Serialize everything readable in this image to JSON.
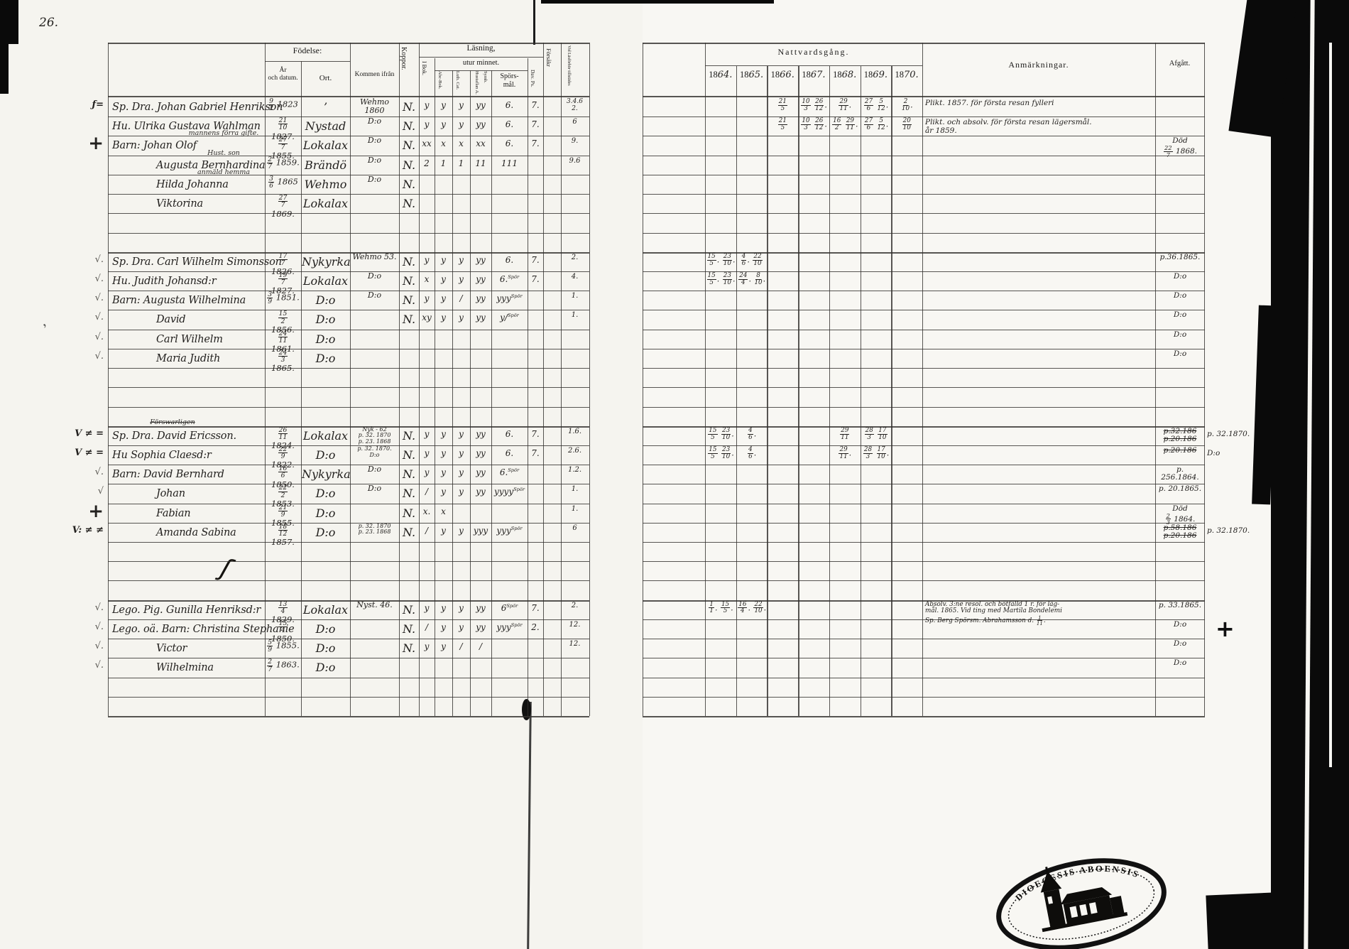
{
  "colors": {
    "ink": "#23211f",
    "paper": "#f7f6f2",
    "line": "#33312e",
    "scan_black": "#0a0a0a"
  },
  "page_number": "26.",
  "left_header": {
    "fodelse": "Födelse:",
    "ar_datum": "År\noch datum.",
    "ort": "Ort.",
    "kommen": "Kommen ifrån",
    "koppor": "Koppor.",
    "lasning": "Läsning,",
    "utur": "utur minnet.",
    "ibok": "I Bok.",
    "abc": "Abc-Bok.",
    "luth": "Luth. Cat.",
    "hust": "Hustaflan A. Symb.",
    "spors": "Spörs-\nmål.",
    "davps": "Dav. Ps.",
    "forsakr": "Försåkr",
    "tillst": "Vid Läsförhör tillstädes"
  },
  "right_header": {
    "nattvard": "Nattvardsgång.",
    "years": [
      "1864.",
      "1865.",
      "1866.",
      "1867.",
      "1868.",
      "1869.",
      "1870."
    ],
    "anm": "Anmärkningar.",
    "afgatt": "Afgått."
  },
  "stamp": {
    "top": "DIOECESIS ABOENSIS",
    "bottom": "· · · · · · ·"
  },
  "rows": [
    {
      "i": 0,
      "margin": "ƒ=",
      "name": "Sp. Dra. Johan Gabriel Henrikson",
      "born": "9/2 1823",
      "ort": "’",
      "kommen": "Wehmo 1860",
      "koppor": "N.",
      "marks": [
        "y",
        "y",
        "y",
        "yy",
        "6.",
        "7.",
        ""
      ],
      "tillst": "3.4.6\n2.",
      "comm": {
        "2": "21/5",
        "3": "10/3 26/12.",
        "4": "29/11.",
        "5": "27/6 5/12.",
        "6": "2/10."
      },
      "anm": "Plikt. 1857. för första resan fylleri"
    },
    {
      "i": 1,
      "name": "Hu. Ulrika Gustava Wahlman",
      "born": "21/10 1827.",
      "ort": "Nystad",
      "kommen": "D:o",
      "koppor": "N.",
      "marks": [
        "y",
        "y",
        "y",
        "yy",
        "6.",
        "7.",
        ""
      ],
      "tillst": "6",
      "comm": {
        "2": "21/5",
        "3": "10/3 26/12.",
        "4": "16/2 29/11.",
        "5": "27/6 5/12.",
        "6": "20/10"
      },
      "anm": "Plikt. och absolv. för första resan lägersmål.\når 1859."
    },
    {
      "i": 2,
      "margin": "+",
      "note": "mannens förra gifte.",
      "name": "Barn: Johan Olof",
      "born": "27/7 1855.",
      "ort": "Lokalax",
      "kommen": "D:o",
      "koppor": "N.",
      "marks": [
        "xx",
        "x",
        "x",
        "xx",
        "6.",
        "7.",
        ""
      ],
      "tillst": "9.",
      "afgatt": "Död\n22/7 1868."
    },
    {
      "i": 3,
      "note": "Hust. son",
      "name": "Augusta Bernhardina",
      "child": true,
      "born": "2/7 1859.",
      "ort": "Brändö",
      "kommen": "D:o",
      "koppor": "N.",
      "marks": [
        "2",
        "1",
        "1",
        "11",
        "111",
        "",
        ""
      ],
      "tillst": "9.6"
    },
    {
      "i": 4,
      "note": "anmäld hemma",
      "name": "Hilda Johanna",
      "child": true,
      "born": "3/6 1865",
      "ort": "Wehmo",
      "kommen": "D:o",
      "koppor": "N."
    },
    {
      "i": 5,
      "name": "Viktorina",
      "child": true,
      "born": "27/7 1869.",
      "ort": "Lokalax",
      "koppor": "N."
    },
    {
      "i": 8,
      "margin": "√.",
      "name": "Sp. Dra. Carl Wilhelm Simonsson",
      "born": "17/7 1826.",
      "ort": "Nykyrka",
      "kommen": "Wehmo 53.",
      "koppor": "N.",
      "marks": [
        "y",
        "y",
        "y",
        "yy",
        "6.",
        "7.",
        ""
      ],
      "tillst": "2.",
      "comm": {
        "0": "15/5. 23/10.",
        "1": "4/6. 22/10"
      },
      "afgatt": "p.36.1865."
    },
    {
      "i": 9,
      "margin": "√.",
      "name": "Hu. Judith Johansd:r",
      "born": "19/7 1827.",
      "ort": "Lokalax",
      "kommen": "D:o",
      "koppor": "N.",
      "marks": [
        "x",
        "y",
        "y",
        "yy",
        "6.^Spör",
        "7.",
        ""
      ],
      "tillst": "4.",
      "comm": {
        "0": "15/5. 23/10.",
        "1": "24/4. 8/10."
      },
      "afgatt": "D:o"
    },
    {
      "i": 10,
      "margin": "√.",
      "name": "Barn: Augusta Wilhelmina",
      "born": "3/9 1851.",
      "ort": "D:o",
      "kommen": "D:o",
      "koppor": "N.",
      "marks": [
        "y",
        "y",
        "/",
        "yy",
        "yyy^Spör",
        "",
        ""
      ],
      "tillst": "1.",
      "afgatt": "D:o"
    },
    {
      "i": 11,
      "margin": "√.",
      "name": "David",
      "child": true,
      "born": "15/2 1856.",
      "ort": "D:o",
      "koppor": "N.",
      "marks": [
        "xy",
        "y",
        "y",
        "yy",
        "y/^Spör",
        "",
        ""
      ],
      "tillst": "1.",
      "afgatt": "D:o"
    },
    {
      "i": 12,
      "margin": "√.",
      "name": "Carl Wilhelm",
      "child": true,
      "born": "24/11 1861.",
      "ort": "D:o",
      "afgatt": "D:o"
    },
    {
      "i": 13,
      "margin": "√.",
      "name": "Maria Judith",
      "child": true,
      "born": "24/3 1865.",
      "ort": "D:o",
      "afgatt": "D:o"
    },
    {
      "i": 17,
      "margin": "V ≠ =",
      "note_struck": "Förswarligen",
      "name": "Sp. Dra. David Ericsson.",
      "born": "26/11 1824.",
      "ort": "Lokalax",
      "kommen": "Nyk - 62\np. 32. 1870\np. 23. 1868",
      "koppor": "N.",
      "marks": [
        "y",
        "y",
        "y",
        "yy",
        "6.",
        "7.",
        ""
      ],
      "tillst": "1.6.",
      "comm": {
        "0": "15/5 23/10.",
        "1": "4/6.",
        "4": "29/11",
        "5": "28/3 17/10"
      },
      "afgatt": "~p.32.186~\n~p.20.186~",
      "outside": "p. 32.1870."
    },
    {
      "i": 18,
      "margin": "V ≠ =",
      "name": "Hu Sophia Claesd:r",
      "born": "22/9 1822.",
      "ort": "D:o",
      "kommen": "p. 32. 1870.\nD:o",
      "koppor": "N.",
      "marks": [
        "y",
        "y",
        "y",
        "yy",
        "6.",
        "7.",
        ""
      ],
      "tillst": "2.6.",
      "comm": {
        "0": "15/5 23/10.",
        "1": "4/6.",
        "4": "29/11.",
        "5": "28/3 17/10."
      },
      "afgatt": "~p.20.186~",
      "outside": "D:o"
    },
    {
      "i": 19,
      "margin": "√.",
      "name": "Barn: David Bernhard",
      "born": "16/6 1850.",
      "ort": "Nykyrka",
      "kommen": "D:o",
      "koppor": "N.",
      "marks": [
        "y",
        "y",
        "y",
        "yy",
        "6.^Spör",
        "",
        ""
      ],
      "tillst": "1.2.",
      "afgatt": "p. 256.1864."
    },
    {
      "i": 20,
      "margin": "√",
      "name": "Johan",
      "child": true,
      "born": "22/2 1853.",
      "ort": "D:o",
      "kommen": "D:o",
      "koppor": "N.",
      "marks": [
        "/",
        "y",
        "y",
        "yy",
        "yyyy^Spör",
        "",
        ""
      ],
      "tillst": "1.",
      "afgatt": "p. 20.1865."
    },
    {
      "i": 21,
      "margin": "+",
      "name": "Fabian",
      "child": true,
      "born": "21/9 1855.",
      "ort": "D:o",
      "koppor": "N.",
      "marks": [
        "x.",
        "x",
        "",
        "",
        "",
        "",
        ""
      ],
      "tillst": "1.",
      "afgatt": "Död\n2/3 1864."
    },
    {
      "i": 22,
      "margin": "V: ≠ ≠",
      "name": "Amanda Sabina",
      "child": true,
      "born": "18/12 1857.",
      "ort": "D:o",
      "kommen": "p. 32. 1870\np. 23. 1868",
      "koppor": "N.",
      "marks": [
        "/",
        "y",
        "y",
        "yyy",
        "yyy^Spör",
        "",
        ""
      ],
      "tillst": "6",
      "afgatt": "~p.58.186~\n~p.20.186~",
      "outside": "p. 32.1870."
    },
    {
      "i": 26,
      "margin": "√.",
      "name": "Lego. Pig. Gunilla Henriksd:r",
      "born": "13/4 1829.",
      "ort": "Lokalax",
      "kommen": "Nyst. 46.",
      "koppor": "N.",
      "marks": [
        "y",
        "y",
        "y",
        "yy",
        "6^Spör",
        "7.",
        ""
      ],
      "tillst": "2.",
      "comm": {
        "0": "1/1. 15/5.",
        "1": "16/4. 22/10."
      },
      "anm": "Absolv. 3:ne resol. och bötfälld 1 r. för läg-\nmål. 1865. Vid ting med Martila Bondelemi\nSp. Berg Spörsm. Abrahamsson d. 1/11.",
      "afgatt": "p. 33.1865."
    },
    {
      "i": 27,
      "margin": "√.",
      "name": "Lego. oä. Barn: Christina Stephanie",
      "born": "15/4 1850.",
      "ort": "D:o",
      "koppor": "N.",
      "marks": [
        "/",
        "y",
        "y",
        "yy",
        "yyy^Spör",
        "2.",
        ""
      ],
      "tillst": "12.",
      "afgatt": "D:o",
      "plus_right": "+"
    },
    {
      "i": 28,
      "margin": "√.",
      "name": "Victor",
      "child": true,
      "born": "5/9 1855.",
      "ort": "D:o",
      "koppor": "N.",
      "marks": [
        "y",
        "y",
        "/",
        "/",
        "",
        "",
        ""
      ],
      "tillst": "12.",
      "afgatt": "D:o"
    },
    {
      "i": 29,
      "margin": "√.",
      "name": "Wilhelmina",
      "child": true,
      "born": "2/7 1863.",
      "ort": "D:o",
      "afgatt": "D:o"
    }
  ]
}
